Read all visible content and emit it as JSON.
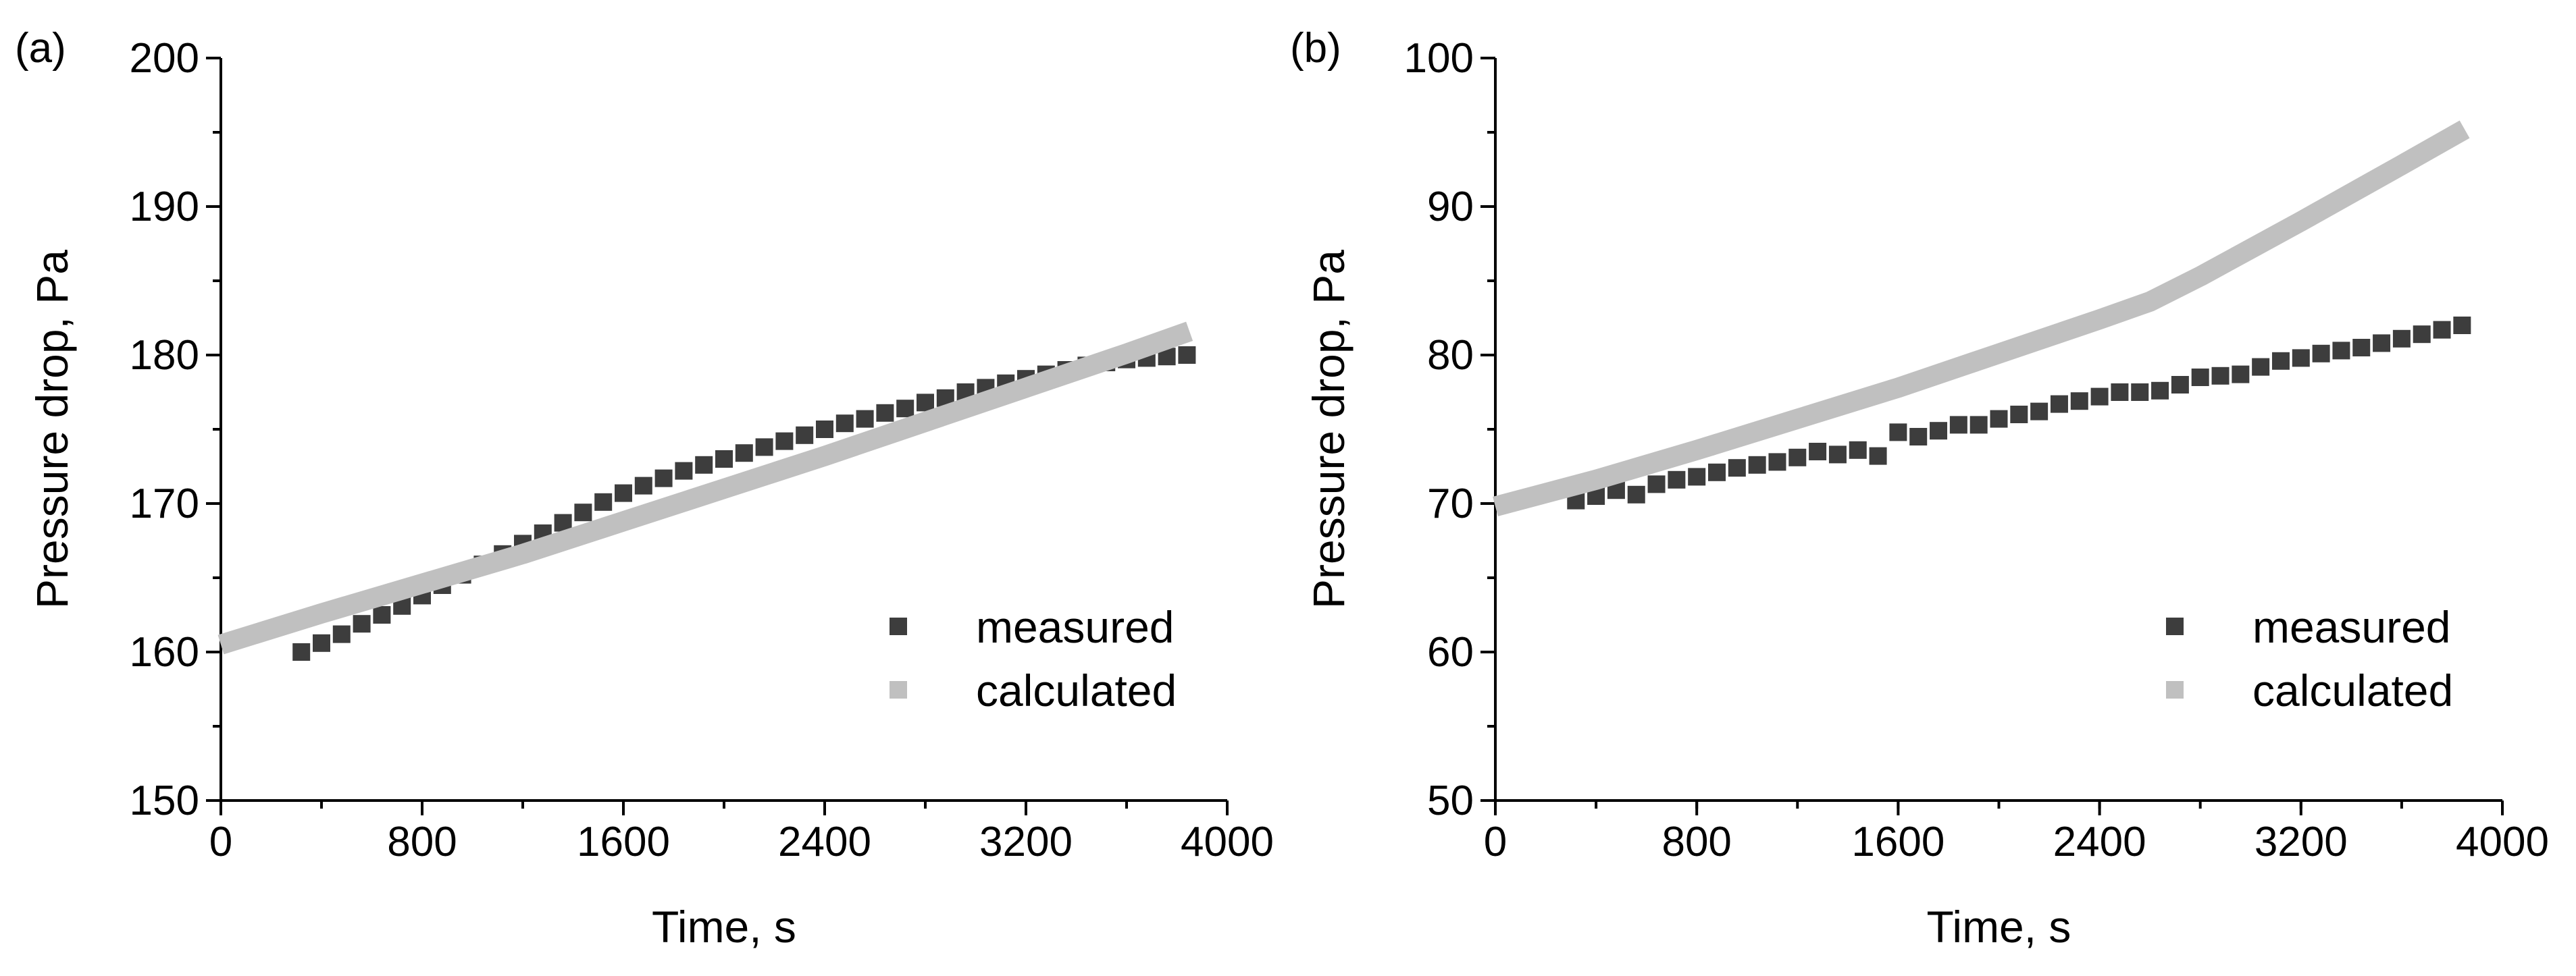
{
  "colors": {
    "measured": "#3d3d3d",
    "calculated": "#c0c0c0",
    "axis": "#000000"
  },
  "chart_data": [
    {
      "type": "scatter",
      "panel_label": "(a)",
      "xlabel": "Time, s",
      "ylabel": "Pressure drop, Pa",
      "xlim": [
        0,
        4000
      ],
      "ylim": [
        150,
        200
      ],
      "xticks": [
        0,
        800,
        1600,
        2400,
        3200,
        4000
      ],
      "yticks": [
        150,
        160,
        170,
        180,
        190,
        200
      ],
      "x_minor_step": 400,
      "y_minor_step": 5,
      "legend": {
        "position": "bottom-right",
        "entries": [
          "measured",
          "calculated"
        ]
      },
      "series": [
        {
          "name": "measured",
          "style": "square-markers",
          "x": [
            320,
            400,
            480,
            560,
            640,
            720,
            800,
            880,
            960,
            1040,
            1120,
            1200,
            1280,
            1360,
            1440,
            1520,
            1600,
            1680,
            1760,
            1840,
            1920,
            2000,
            2080,
            2160,
            2240,
            2320,
            2400,
            2480,
            2560,
            2640,
            2720,
            2800,
            2880,
            2960,
            3040,
            3120,
            3200,
            3280,
            3360,
            3440,
            3520,
            3600,
            3680,
            3760,
            3840
          ],
          "y": [
            160.0,
            160.6,
            161.2,
            161.9,
            162.5,
            163.1,
            163.8,
            164.5,
            165.2,
            165.9,
            166.6,
            167.3,
            168.0,
            168.7,
            169.4,
            170.1,
            170.7,
            171.2,
            171.7,
            172.2,
            172.6,
            173.0,
            173.4,
            173.8,
            174.2,
            174.6,
            175.0,
            175.4,
            175.7,
            176.1,
            176.4,
            176.8,
            177.1,
            177.5,
            177.8,
            178.1,
            178.4,
            178.7,
            179.0,
            179.3,
            179.5,
            179.7,
            179.8,
            179.9,
            180.0
          ]
        },
        {
          "name": "calculated",
          "style": "thick-line",
          "x": [
            0,
            400,
            800,
            1200,
            1600,
            2000,
            2400,
            2800,
            3200,
            3600,
            3850
          ],
          "y": [
            160.5,
            162.6,
            164.6,
            166.6,
            168.8,
            171.0,
            173.2,
            175.5,
            177.8,
            180.1,
            181.6
          ]
        }
      ]
    },
    {
      "type": "scatter",
      "panel_label": "(b)",
      "xlabel": "Time, s",
      "ylabel": "Pressure drop, Pa",
      "xlim": [
        0,
        4000
      ],
      "ylim": [
        50,
        100
      ],
      "xticks": [
        0,
        800,
        1600,
        2400,
        3200,
        4000
      ],
      "yticks": [
        50,
        60,
        70,
        80,
        90,
        100
      ],
      "x_minor_step": 400,
      "y_minor_step": 5,
      "legend": {
        "position": "bottom-right",
        "entries": [
          "measured",
          "calculated"
        ]
      },
      "series": [
        {
          "name": "measured",
          "style": "square-markers",
          "x": [
            320,
            400,
            480,
            560,
            640,
            720,
            800,
            880,
            960,
            1040,
            1120,
            1200,
            1280,
            1360,
            1440,
            1520,
            1600,
            1680,
            1760,
            1840,
            1920,
            2000,
            2080,
            2160,
            2240,
            2320,
            2400,
            2480,
            2560,
            2640,
            2720,
            2800,
            2880,
            2960,
            3040,
            3120,
            3200,
            3280,
            3360,
            3440,
            3520,
            3600,
            3680,
            3760,
            3840
          ],
          "y": [
            70.2,
            70.5,
            70.9,
            70.6,
            71.3,
            71.6,
            71.8,
            72.1,
            72.4,
            72.6,
            72.8,
            73.1,
            73.5,
            73.3,
            73.6,
            73.2,
            74.8,
            74.5,
            74.9,
            75.3,
            75.3,
            75.7,
            76.0,
            76.2,
            76.7,
            76.9,
            77.2,
            77.5,
            77.5,
            77.6,
            78.0,
            78.5,
            78.6,
            78.7,
            79.2,
            79.6,
            79.8,
            80.1,
            80.3,
            80.5,
            80.8,
            81.1,
            81.4,
            81.7,
            82.0
          ]
        },
        {
          "name": "calculated",
          "style": "thick-line",
          "x": [
            0,
            400,
            800,
            1200,
            1600,
            2000,
            2400,
            2600,
            2800,
            3200,
            3600,
            3850
          ],
          "y": [
            69.8,
            71.6,
            73.6,
            75.7,
            77.8,
            80.1,
            82.4,
            83.6,
            85.3,
            89.0,
            92.8,
            95.2
          ]
        }
      ]
    }
  ]
}
